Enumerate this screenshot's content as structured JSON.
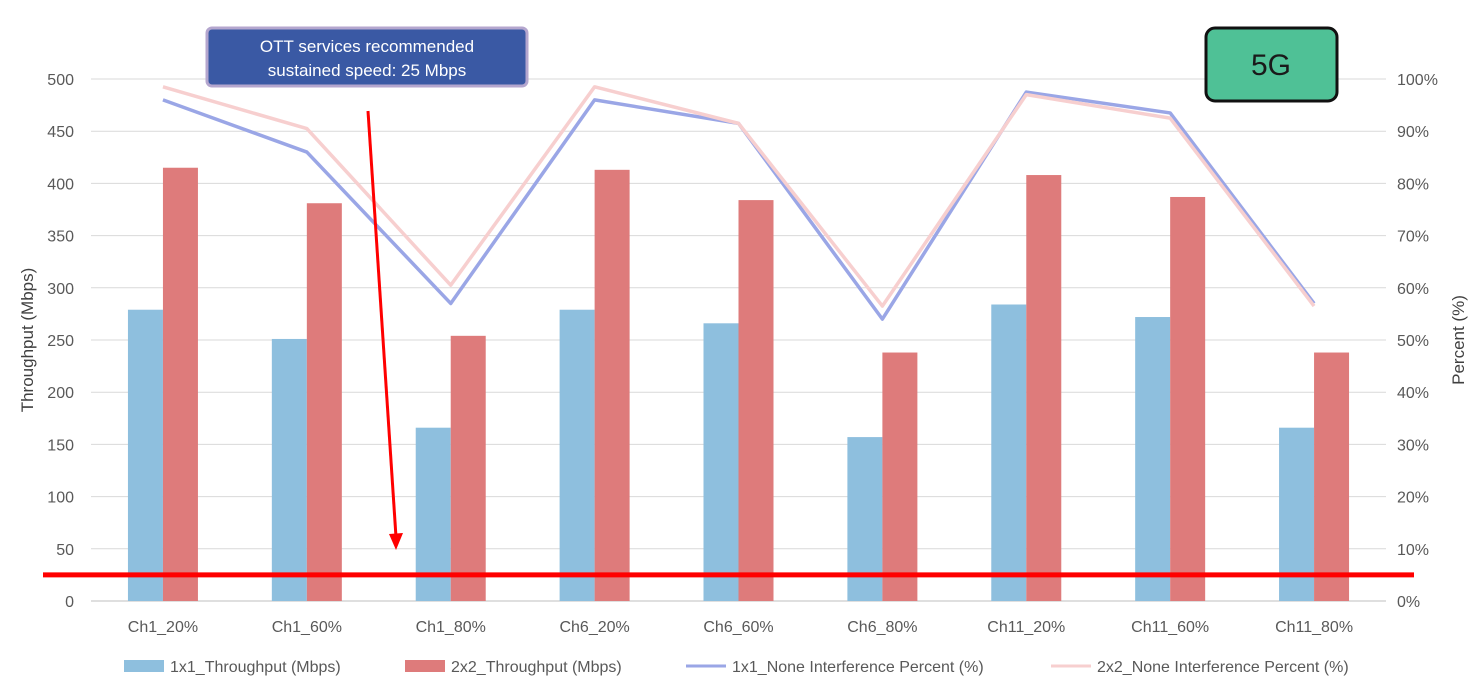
{
  "chart_data": {
    "type": "bar",
    "categories": [
      "Ch1_20%",
      "Ch1_60%",
      "Ch1_80%",
      "Ch6_20%",
      "Ch6_60%",
      "Ch6_80%",
      "Ch11_20%",
      "Ch11_60%",
      "Ch11_80%"
    ],
    "series": [
      {
        "name": "1x1_Throughput (Mbps)",
        "type": "bar",
        "axis": "left",
        "color": "#8EBFDE",
        "values": [
          279,
          251,
          166,
          279,
          266,
          157,
          284,
          272,
          166
        ]
      },
      {
        "name": "2x2_Throughput (Mbps)",
        "type": "bar",
        "axis": "left",
        "color": "#DE7B7B",
        "values": [
          415,
          381,
          254,
          413,
          384,
          238,
          408,
          387,
          238
        ]
      },
      {
        "name": "1x1_None Interference Percent (%)",
        "type": "line",
        "axis": "right",
        "color": "#9AA6E6",
        "values": [
          96,
          86,
          57,
          96,
          91.5,
          54,
          97.5,
          93.5,
          57
        ]
      },
      {
        "name": "2x2_None Interference Percent (%)",
        "type": "line",
        "axis": "right",
        "color": "#F7CFCF",
        "values": [
          98.5,
          90.5,
          60.5,
          98.5,
          91.5,
          56.5,
          97,
          92.5,
          56.5
        ]
      }
    ],
    "ylabel": "Throughput (Mbps)",
    "y2label": "Percent (%)",
    "ylim": [
      0,
      500
    ],
    "y2lim": [
      0,
      100
    ],
    "yticks": [
      "0",
      "50",
      "100",
      "150",
      "200",
      "250",
      "300",
      "350",
      "400",
      "450",
      "500"
    ],
    "y2ticks": [
      "0%",
      "10%",
      "20%",
      "30%",
      "40%",
      "50%",
      "60%",
      "70%",
      "80%",
      "90%",
      "100%"
    ],
    "grid": true,
    "legend_position": "bottom",
    "reference_line": {
      "value": 25,
      "color": "#FF0000"
    },
    "annotation": {
      "line1": "OTT services recommended",
      "line2": "sustained speed: 25 Mbps"
    },
    "badge": "5G"
  }
}
